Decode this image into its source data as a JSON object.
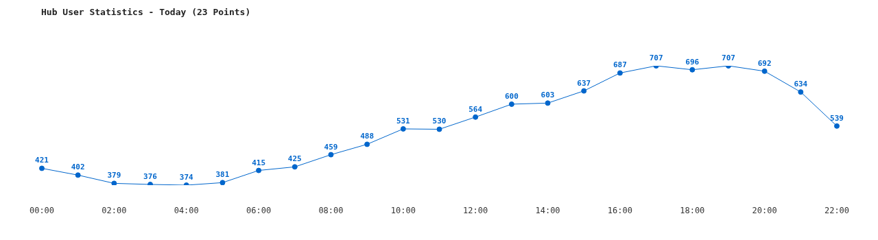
{
  "chart_data": {
    "type": "line",
    "title": "Hub User Statistics - Today (23 Points)",
    "categories": [
      "00:00",
      null,
      "02:00",
      null,
      "04:00",
      null,
      "06:00",
      null,
      "08:00",
      null,
      "10:00",
      null,
      "12:00",
      null,
      "14:00",
      null,
      "16:00",
      null,
      "18:00",
      null,
      "20:00",
      null,
      "22:00"
    ],
    "series": [
      {
        "color": "#0066cc",
        "values": [
          421,
          402,
          379,
          376,
          374,
          381,
          415,
          425,
          459,
          488,
          531,
          530,
          564,
          600,
          603,
          637,
          687,
          707,
          696,
          707,
          692,
          634,
          539
        ]
      }
    ],
    "data_labels": true,
    "marker": "circle"
  }
}
